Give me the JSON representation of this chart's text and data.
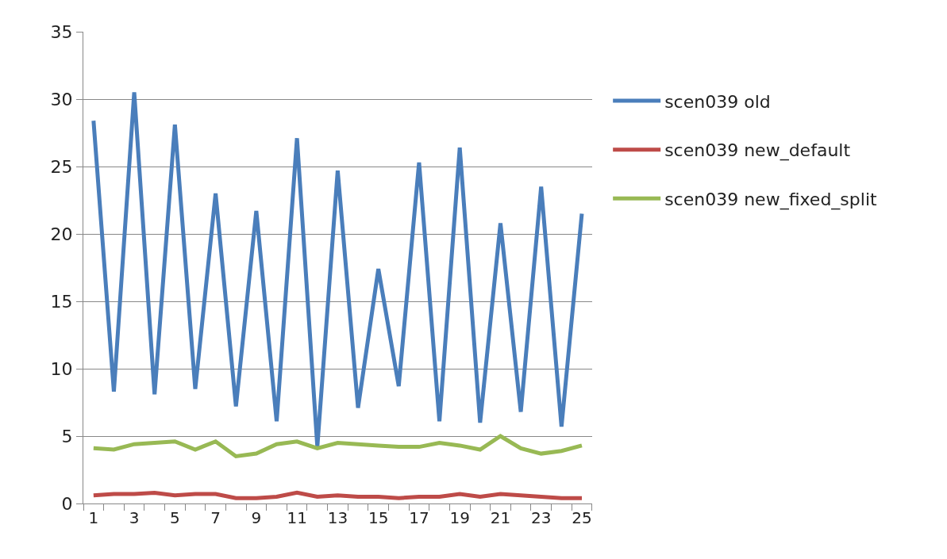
{
  "chart_data": {
    "type": "line",
    "x": [
      1,
      2,
      3,
      4,
      5,
      6,
      7,
      8,
      9,
      10,
      11,
      12,
      13,
      14,
      15,
      16,
      17,
      18,
      19,
      20,
      21,
      22,
      23,
      24,
      25
    ],
    "xlim": [
      0.5,
      25.5
    ],
    "xticks": [
      1,
      3,
      5,
      7,
      9,
      11,
      13,
      15,
      17,
      19,
      21,
      23,
      25,
      {
        "value": 0.5,
        "label": null
      },
      {
        "value": 1.5,
        "label": null
      },
      {
        "value": 2.5,
        "label": null
      },
      {
        "value": 3.5,
        "label": null
      },
      {
        "value": 4.5,
        "label": null
      },
      {
        "value": 5.5,
        "label": null
      },
      {
        "value": 6.5,
        "label": null
      },
      {
        "value": 7.5,
        "label": null
      },
      {
        "value": 8.5,
        "label": null
      },
      {
        "value": 9.5,
        "label": null
      },
      {
        "value": 10.5,
        "label": null
      },
      {
        "value": 11.5,
        "label": null
      },
      {
        "value": 12.5,
        "label": null
      },
      {
        "value": 13.5,
        "label": null
      },
      {
        "value": 14.5,
        "label": null
      },
      {
        "value": 15.5,
        "label": null
      },
      {
        "value": 16.5,
        "label": null
      },
      {
        "value": 17.5,
        "label": null
      },
      {
        "value": 18.5,
        "label": null
      },
      {
        "value": 19.5,
        "label": null
      },
      {
        "value": 20.5,
        "label": null
      },
      {
        "value": 21.5,
        "label": null
      },
      {
        "value": 22.5,
        "label": null
      },
      {
        "value": 23.5,
        "label": null
      },
      {
        "value": 24.5,
        "label": null
      },
      {
        "value": 25.5,
        "label": null
      }
    ],
    "series": [
      {
        "name": "scen039 old",
        "color": "#4a7ebb",
        "values": [
          28.4,
          8.3,
          30.5,
          8.1,
          28.1,
          8.5,
          23.0,
          7.2,
          21.7,
          6.1,
          27.1,
          4.2,
          24.7,
          7.1,
          17.4,
          8.7,
          25.3,
          6.1,
          26.4,
          6.0,
          20.8,
          6.8,
          23.5,
          5.7,
          21.5
        ]
      },
      {
        "name": "scen039 new_default",
        "color": "#be4b48",
        "values": [
          0.6,
          0.7,
          0.7,
          0.8,
          0.6,
          0.7,
          0.7,
          0.4,
          0.4,
          0.5,
          0.8,
          0.5,
          0.6,
          0.5,
          0.5,
          0.4,
          0.5,
          0.5,
          0.7,
          0.5,
          0.7,
          0.6,
          0.5,
          0.4,
          0.4
        ]
      },
      {
        "name": "scen039 new_fixed_split",
        "color": "#98b954",
        "values": [
          4.1,
          4.0,
          4.4,
          4.5,
          4.6,
          4.0,
          4.6,
          3.5,
          3.7,
          4.4,
          4.6,
          4.1,
          4.5,
          4.4,
          4.3,
          4.2,
          4.2,
          4.5,
          4.3,
          4.0,
          5.0,
          4.1,
          3.7,
          3.9,
          4.3
        ]
      }
    ],
    "ylim": [
      0,
      35
    ],
    "yticks": [
      0,
      5,
      10,
      15,
      20,
      25,
      30,
      35
    ],
    "grid": "y",
    "legend": "right",
    "marker": "none",
    "line_style": "solid"
  }
}
